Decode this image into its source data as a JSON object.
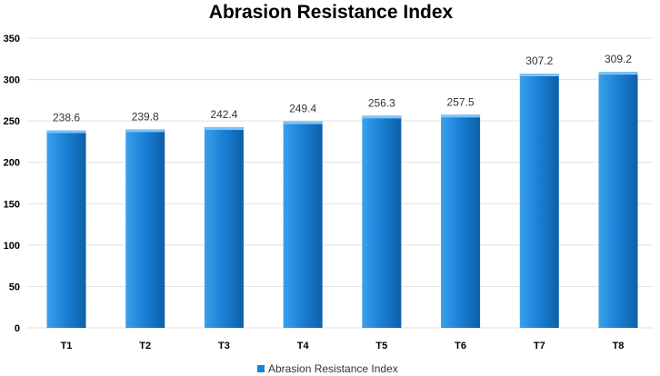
{
  "chart_data": {
    "type": "bar",
    "title": "Abrasion Resistance Index",
    "categories": [
      "T1",
      "T2",
      "T3",
      "T4",
      "T5",
      "T6",
      "T7",
      "T8"
    ],
    "series": [
      {
        "name": "Abrasion Resistance Index",
        "values": [
          238.6,
          239.8,
          242.4,
          249.4,
          256.3,
          257.5,
          307.2,
          309.2
        ],
        "data_labels": [
          "238.6",
          "239.8",
          "242.4",
          "249.4",
          "256.3",
          "257.5",
          "307.2",
          "309.2"
        ]
      }
    ],
    "yticks": [
      0,
      50,
      100,
      150,
      200,
      250,
      300,
      350
    ],
    "ylim": [
      0,
      350
    ],
    "xlabel": "",
    "ylabel": "",
    "grid": true,
    "legend": "bottom",
    "colors": {
      "bar_light": "#3aa0ec",
      "bar_mid": "#1b82d8",
      "bar_dark": "#0e5fa8",
      "bar_top": "#7cc4f7"
    }
  }
}
